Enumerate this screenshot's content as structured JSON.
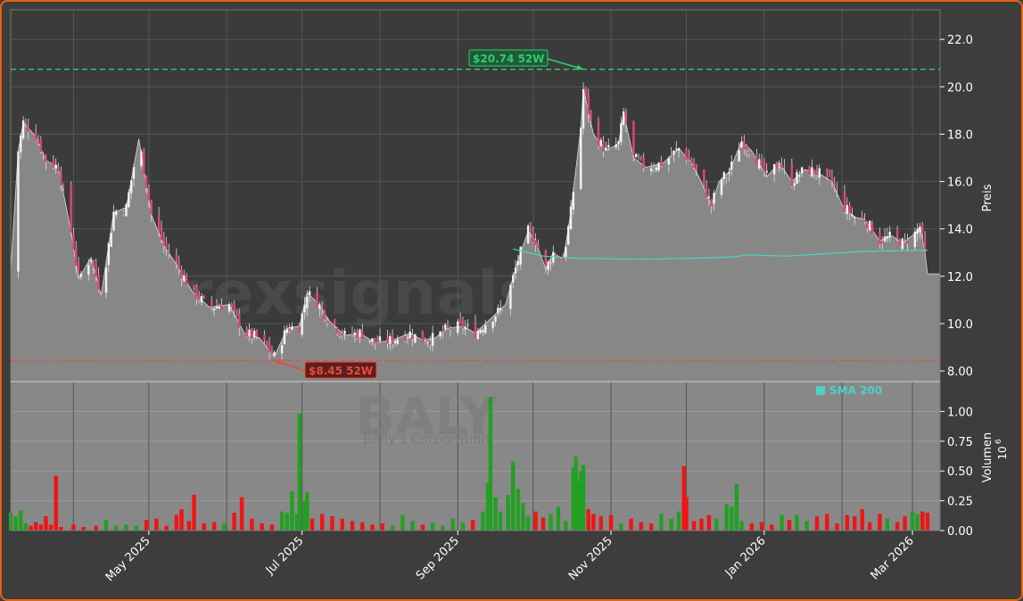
{
  "chart_data": {
    "type": "candlestick",
    "ticker": "BALY",
    "company": "Bally's Corporation",
    "watermark": "forexsignals.trade",
    "price_axis": {
      "label": "Preis",
      "ticks": [
        "8.00",
        "10.0",
        "12.0",
        "14.0",
        "16.0",
        "18.0",
        "20.0",
        "22.0"
      ],
      "range": [
        7.55,
        23.25
      ]
    },
    "volume_axis": {
      "label": "Volumen",
      "multiplier": "10",
      "exponent": "6",
      "ticks": [
        "0.00",
        "0.25",
        "0.50",
        "0.75",
        "1.00"
      ],
      "range": [
        0,
        1.25
      ]
    },
    "x_axis": {
      "ticks": [
        "May 2025",
        "Jul 2025",
        "Sep 2025",
        "Nov 2025",
        "Jan 2026",
        "Mar 2026"
      ],
      "tick_dates": [
        "2025-05-01",
        "2025-07-01",
        "2025-09-01",
        "2025-11-01",
        "2026-01-01",
        "2026-03-01"
      ],
      "range": [
        "2025-03-07",
        "2026-03-12"
      ]
    },
    "high_52w": {
      "value": 20.74,
      "label": "$20.74 52W",
      "date": "2025-10-21",
      "color": "#2ecc71"
    },
    "low_52w": {
      "value": 8.45,
      "label": "$8.45 52W",
      "date": "2025-06-20",
      "color": "#e74c3c"
    },
    "last_price": 12.1,
    "sma": {
      "label": "SMA 200",
      "color": "#4fd1c5",
      "points": [
        [
          "2025-09-23",
          13.15
        ],
        [
          "2025-10-05",
          12.85
        ],
        [
          "2025-10-20",
          12.75
        ],
        [
          "2025-11-15",
          12.72
        ],
        [
          "2025-12-10",
          12.78
        ],
        [
          "2025-12-20",
          12.82
        ],
        [
          "2025-12-25",
          12.9
        ],
        [
          "2026-01-10",
          12.85
        ],
        [
          "2026-01-25",
          12.95
        ],
        [
          "2026-02-10",
          13.05
        ],
        [
          "2026-03-07",
          13.1
        ]
      ]
    },
    "price_series": [
      [
        "2025-03-07",
        12.2
      ],
      [
        "2025-03-10",
        17.3
      ],
      [
        "2025-03-12",
        18.5
      ],
      [
        "2025-03-17",
        17.9
      ],
      [
        "2025-03-21",
        16.9
      ],
      [
        "2025-03-26",
        16.6
      ],
      [
        "2025-03-31",
        13.9
      ],
      [
        "2025-04-03",
        11.9
      ],
      [
        "2025-04-08",
        12.8
      ],
      [
        "2025-04-12",
        11.2
      ],
      [
        "2025-04-17",
        14.7
      ],
      [
        "2025-04-22",
        14.9
      ],
      [
        "2025-04-27",
        17.8
      ],
      [
        "2025-05-02",
        14.6
      ],
      [
        "2025-05-07",
        13.3
      ],
      [
        "2025-05-12",
        12.5
      ],
      [
        "2025-05-18",
        11.4
      ],
      [
        "2025-05-25",
        10.7
      ],
      [
        "2025-06-02",
        10.8
      ],
      [
        "2025-06-08",
        9.6
      ],
      [
        "2025-06-14",
        9.4
      ],
      [
        "2025-06-20",
        8.6
      ],
      [
        "2025-06-25",
        9.8
      ],
      [
        "2025-06-30",
        9.9
      ],
      [
        "2025-07-03",
        11.3
      ],
      [
        "2025-07-07",
        10.9
      ],
      [
        "2025-07-12",
        10.1
      ],
      [
        "2025-07-18",
        9.5
      ],
      [
        "2025-07-24",
        9.6
      ],
      [
        "2025-07-30",
        9.2
      ],
      [
        "2025-08-06",
        9.3
      ],
      [
        "2025-08-13",
        9.6
      ],
      [
        "2025-08-18",
        9.3
      ],
      [
        "2025-08-23",
        9.4
      ],
      [
        "2025-08-28",
        9.8
      ],
      [
        "2025-09-03",
        9.9
      ],
      [
        "2025-09-08",
        9.6
      ],
      [
        "2025-09-14",
        10.2
      ],
      [
        "2025-09-20",
        10.8
      ],
      [
        "2025-09-25",
        12.7
      ],
      [
        "2025-09-29",
        13.9
      ],
      [
        "2025-10-02",
        13.5
      ],
      [
        "2025-10-06",
        12.3
      ],
      [
        "2025-10-09",
        13.0
      ],
      [
        "2025-10-13",
        12.7
      ],
      [
        "2025-10-16",
        14.7
      ],
      [
        "2025-10-20",
        18.3
      ],
      [
        "2025-10-21",
        19.9
      ],
      [
        "2025-10-25",
        18.0
      ],
      [
        "2025-10-30",
        17.3
      ],
      [
        "2025-11-04",
        17.6
      ],
      [
        "2025-11-06",
        18.9
      ],
      [
        "2025-11-10",
        17.0
      ],
      [
        "2025-11-15",
        16.6
      ],
      [
        "2025-11-22",
        16.8
      ],
      [
        "2025-11-28",
        17.4
      ],
      [
        "2025-12-03",
        16.8
      ],
      [
        "2025-12-06",
        16.2
      ],
      [
        "2025-12-11",
        15.0
      ],
      [
        "2025-12-14",
        16.0
      ],
      [
        "2025-12-18",
        16.4
      ],
      [
        "2025-12-23",
        17.7
      ],
      [
        "2025-12-27",
        17.3
      ],
      [
        "2026-01-02",
        16.2
      ],
      [
        "2026-01-07",
        16.8
      ],
      [
        "2026-01-12",
        16.0
      ],
      [
        "2026-01-17",
        16.5
      ],
      [
        "2026-01-22",
        16.4
      ],
      [
        "2026-01-28",
        16.0
      ],
      [
        "2026-02-01",
        15.0
      ],
      [
        "2026-02-06",
        14.5
      ],
      [
        "2026-02-10",
        14.4
      ],
      [
        "2026-02-16",
        13.5
      ],
      [
        "2026-02-21",
        13.7
      ],
      [
        "2026-02-25",
        13.4
      ],
      [
        "2026-03-02",
        13.8
      ],
      [
        "2026-03-04",
        14.1
      ],
      [
        "2026-03-06",
        13.0
      ],
      [
        "2026-03-07",
        12.1
      ],
      [
        "2026-03-12",
        12.1
      ]
    ],
    "volume_series": [
      [
        "2025-03-07",
        0.15
      ],
      [
        "2025-03-09",
        0.12
      ],
      [
        "2025-03-11",
        0.17
      ],
      [
        "2025-03-13",
        0.06
      ],
      [
        "2025-03-15",
        0.04
      ],
      [
        "2025-03-17",
        0.07
      ],
      [
        "2025-03-19",
        0.05
      ],
      [
        "2025-03-21",
        0.12
      ],
      [
        "2025-03-23",
        0.05
      ],
      [
        "2025-03-25",
        0.46
      ],
      [
        "2025-03-27",
        0.03
      ],
      [
        "2025-04-01",
        0.05
      ],
      [
        "2025-04-05",
        0.03
      ],
      [
        "2025-04-10",
        0.04
      ],
      [
        "2025-04-14",
        0.09
      ],
      [
        "2025-04-18",
        0.04
      ],
      [
        "2025-04-22",
        0.05
      ],
      [
        "2025-04-26",
        0.04
      ],
      [
        "2025-04-30",
        0.09
      ],
      [
        "2025-05-04",
        0.1
      ],
      [
        "2025-05-08",
        0.04
      ],
      [
        "2025-05-12",
        0.13
      ],
      [
        "2025-05-14",
        0.18
      ],
      [
        "2025-05-17",
        0.08
      ],
      [
        "2025-05-19",
        0.3
      ],
      [
        "2025-05-23",
        0.06
      ],
      [
        "2025-05-27",
        0.07
      ],
      [
        "2025-05-31",
        0.06
      ],
      [
        "2025-06-04",
        0.15
      ],
      [
        "2025-06-07",
        0.28
      ],
      [
        "2025-06-11",
        0.1
      ],
      [
        "2025-06-15",
        0.06
      ],
      [
        "2025-06-19",
        0.05
      ],
      [
        "2025-06-23",
        0.16
      ],
      [
        "2025-06-25",
        0.15
      ],
      [
        "2025-06-27",
        0.33
      ],
      [
        "2025-06-29",
        0.14
      ],
      [
        "2025-06-30",
        0.98
      ],
      [
        "2025-07-02",
        0.25
      ],
      [
        "2025-07-03",
        0.32
      ],
      [
        "2025-07-05",
        0.1
      ],
      [
        "2025-07-09",
        0.14
      ],
      [
        "2025-07-13",
        0.12
      ],
      [
        "2025-07-17",
        0.1
      ],
      [
        "2025-07-21",
        0.08
      ],
      [
        "2025-07-25",
        0.07
      ],
      [
        "2025-07-29",
        0.05
      ],
      [
        "2025-08-02",
        0.06
      ],
      [
        "2025-08-06",
        0.04
      ],
      [
        "2025-08-10",
        0.13
      ],
      [
        "2025-08-14",
        0.08
      ],
      [
        "2025-08-18",
        0.05
      ],
      [
        "2025-08-22",
        0.07
      ],
      [
        "2025-08-26",
        0.04
      ],
      [
        "2025-08-30",
        0.1
      ],
      [
        "2025-09-03",
        0.07
      ],
      [
        "2025-09-07",
        0.09
      ],
      [
        "2025-09-11",
        0.16
      ],
      [
        "2025-09-13",
        0.4
      ],
      [
        "2025-09-14",
        1.12
      ],
      [
        "2025-09-16",
        0.28
      ],
      [
        "2025-09-18",
        0.16
      ],
      [
        "2025-09-21",
        0.3
      ],
      [
        "2025-09-23",
        0.58
      ],
      [
        "2025-09-25",
        0.35
      ],
      [
        "2025-09-27",
        0.23
      ],
      [
        "2025-09-29",
        0.12
      ],
      [
        "2025-10-02",
        0.16
      ],
      [
        "2025-10-05",
        0.11
      ],
      [
        "2025-10-08",
        0.14
      ],
      [
        "2025-10-11",
        0.2
      ],
      [
        "2025-10-14",
        0.08
      ],
      [
        "2025-10-17",
        0.53
      ],
      [
        "2025-10-18",
        0.62
      ],
      [
        "2025-10-19",
        0.41
      ],
      [
        "2025-10-20",
        0.5
      ],
      [
        "2025-10-21",
        0.55
      ],
      [
        "2025-10-23",
        0.18
      ],
      [
        "2025-10-25",
        0.14
      ],
      [
        "2025-10-28",
        0.12
      ],
      [
        "2025-11-01",
        0.13
      ],
      [
        "2025-11-05",
        0.06
      ],
      [
        "2025-11-09",
        0.1
      ],
      [
        "2025-11-13",
        0.07
      ],
      [
        "2025-11-17",
        0.06
      ],
      [
        "2025-11-21",
        0.14
      ],
      [
        "2025-11-25",
        0.1
      ],
      [
        "2025-11-28",
        0.16
      ],
      [
        "2025-11-30",
        0.54
      ],
      [
        "2025-12-01",
        0.28
      ],
      [
        "2025-12-04",
        0.08
      ],
      [
        "2025-12-07",
        0.1
      ],
      [
        "2025-12-10",
        0.13
      ],
      [
        "2025-12-13",
        0.1
      ],
      [
        "2025-12-17",
        0.22
      ],
      [
        "2025-12-19",
        0.2
      ],
      [
        "2025-12-21",
        0.39
      ],
      [
        "2025-12-23",
        0.08
      ],
      [
        "2025-12-27",
        0.06
      ],
      [
        "2025-12-31",
        0.07
      ],
      [
        "2026-01-04",
        0.05
      ],
      [
        "2026-01-08",
        0.13
      ],
      [
        "2026-01-11",
        0.09
      ],
      [
        "2026-01-14",
        0.13
      ],
      [
        "2026-01-18",
        0.08
      ],
      [
        "2026-01-22",
        0.12
      ],
      [
        "2026-01-26",
        0.14
      ],
      [
        "2026-01-30",
        0.06
      ],
      [
        "2026-02-03",
        0.13
      ],
      [
        "2026-02-06",
        0.12
      ],
      [
        "2026-02-09",
        0.18
      ],
      [
        "2026-02-12",
        0.07
      ],
      [
        "2026-02-16",
        0.14
      ],
      [
        "2026-02-19",
        0.1
      ],
      [
        "2026-02-23",
        0.07
      ],
      [
        "2026-02-26",
        0.12
      ],
      [
        "2026-03-01",
        0.16
      ],
      [
        "2026-03-03",
        0.14
      ],
      [
        "2026-03-05",
        0.16
      ],
      [
        "2026-03-07",
        0.15
      ]
    ]
  }
}
